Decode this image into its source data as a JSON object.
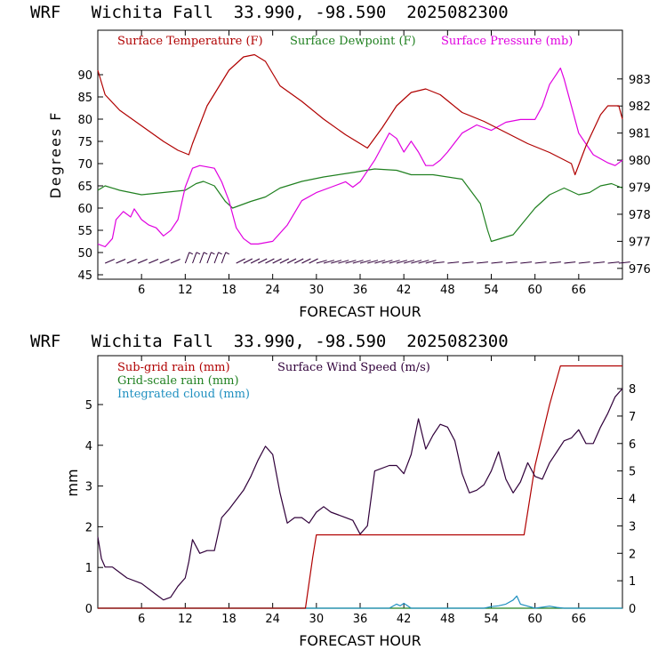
{
  "chart_data": [
    {
      "type": "line",
      "title": "WRF   Wichita Fall  33.990, -98.590  2025082300",
      "xlabel": "FORECAST HOUR",
      "ylabel": "Degrees F",
      "y2label": "",
      "xlim": [
        0,
        72
      ],
      "ylim": [
        44,
        100
      ],
      "y2lim": [
        975.6,
        984.8
      ],
      "xticks": [
        "6",
        "12",
        "18",
        "24",
        "30",
        "36",
        "42",
        "48",
        "54",
        "60",
        "66"
      ],
      "yticks": [
        "45",
        "50",
        "55",
        "60",
        "65",
        "70",
        "75",
        "80",
        "85",
        "90"
      ],
      "y2ticks": [
        "976",
        "977",
        "978",
        "979",
        "980",
        "981",
        "982",
        "983"
      ],
      "colors": {
        "temperature": "#b00000",
        "dewpoint": "#208020",
        "pressure": "#e000e0",
        "wind": "#30003a"
      },
      "series": [
        {
          "name": "Surface Temperature (F)",
          "axis": "left",
          "x": [
            0,
            1,
            3,
            6,
            9,
            11,
            12.5,
            13,
            15,
            18,
            20,
            21.5,
            23,
            25,
            28,
            31,
            34,
            37,
            39,
            41,
            43,
            45,
            47,
            50,
            53,
            56,
            59,
            62,
            65,
            65.5,
            67,
            69,
            70,
            71.5,
            72
          ],
          "values": [
            91,
            85.5,
            82,
            78.5,
            75,
            73,
            72,
            74.5,
            83,
            91,
            94,
            94.5,
            93,
            87.5,
            84,
            80,
            76.5,
            73.5,
            78,
            83,
            86,
            86.8,
            85.5,
            81.5,
            79.5,
            77,
            74.5,
            72.5,
            70,
            67.5,
            74,
            81,
            83,
            83,
            80
          ]
        },
        {
          "name": "Surface Dewpoint (F)",
          "axis": "left",
          "x": [
            0,
            1,
            3,
            6,
            9,
            12,
            13.5,
            14.5,
            16,
            17.5,
            18.5,
            21,
            23,
            25,
            28,
            31,
            35,
            38,
            41,
            43,
            46,
            50,
            52.5,
            53.5,
            54,
            55,
            57,
            60,
            62,
            64,
            66,
            67.5,
            69,
            70.5,
            72
          ],
          "values": [
            64,
            65,
            64,
            63,
            63.5,
            64,
            65.5,
            66,
            65,
            61.5,
            60,
            61.5,
            62.5,
            64.5,
            66,
            67,
            68,
            68.8,
            68.5,
            67.5,
            67.5,
            66.5,
            61,
            55,
            52.5,
            53,
            54,
            60,
            63,
            64.5,
            63,
            63.5,
            65,
            65.5,
            64.5
          ]
        },
        {
          "name": "Surface Pressure (mb)",
          "axis": "right",
          "x": [
            0,
            1,
            2,
            2.5,
            3.5,
            4.5,
            5,
            6,
            7,
            8,
            9,
            10,
            11,
            12,
            13,
            14,
            16,
            17,
            18,
            19,
            20,
            21,
            22,
            24,
            26,
            28,
            30,
            32,
            34,
            35,
            36,
            38,
            39,
            40,
            41,
            42,
            43,
            44,
            45,
            46,
            47,
            48,
            50,
            52,
            54,
            56,
            58,
            60,
            61,
            62,
            63,
            63.5,
            64,
            65,
            66,
            68,
            70,
            71,
            72
          ],
          "values": [
            976.9,
            976.8,
            977.1,
            977.8,
            978.1,
            977.9,
            978.2,
            977.8,
            977.6,
            977.5,
            977.2,
            977.4,
            977.8,
            979.0,
            979.7,
            979.8,
            979.7,
            979.2,
            978.5,
            977.5,
            977.1,
            976.9,
            976.9,
            977.0,
            977.6,
            978.5,
            978.8,
            979.0,
            979.2,
            979.0,
            979.2,
            980.0,
            980.5,
            981.0,
            980.8,
            980.3,
            980.7,
            980.3,
            979.8,
            979.8,
            980.0,
            980.3,
            981.0,
            981.3,
            981.1,
            981.4,
            981.5,
            981.5,
            982.0,
            982.8,
            983.2,
            983.4,
            983.0,
            982.0,
            981.0,
            980.2,
            979.9,
            979.8,
            980.0
          ]
        }
      ],
      "wind_barbs": {
        "name": "",
        "x": [
          1,
          2.5,
          4,
          5.5,
          7,
          8.5,
          10,
          12,
          13,
          14,
          15,
          16,
          17,
          19,
          20,
          21,
          22,
          23,
          24,
          25,
          26,
          27,
          28,
          29,
          30,
          31,
          32,
          33,
          34,
          35,
          36,
          37,
          38,
          39,
          40,
          41,
          42,
          43,
          44,
          45,
          46,
          48,
          50,
          52,
          54,
          56,
          58,
          60,
          62,
          64,
          66,
          68,
          70,
          71.5
        ]
      }
    },
    {
      "type": "line",
      "title": "WRF   Wichita Fall  33.990, -98.590  2025082300",
      "xlabel": "FORECAST HOUR",
      "ylabel": "mm",
      "y2label": "",
      "xlim": [
        0,
        72
      ],
      "ylim": [
        0,
        6.2
      ],
      "y2lim": [
        0,
        9.2
      ],
      "xticks": [
        "6",
        "12",
        "18",
        "24",
        "30",
        "36",
        "42",
        "48",
        "54",
        "60",
        "66"
      ],
      "yticks": [
        "0",
        "1",
        "2",
        "3",
        "4",
        "5"
      ],
      "y2ticks": [
        "0",
        "1",
        "2",
        "3",
        "4",
        "5",
        "6",
        "7",
        "8"
      ],
      "colors": {
        "subgrid": "#b00000",
        "gridscale": "#208020",
        "cloud": "#2090c0",
        "wind": "#30003a"
      },
      "series": [
        {
          "name": "Sub-grid rain (mm)",
          "axis": "left",
          "x": [
            0,
            28.5,
            29.5,
            30,
            58.5,
            60,
            62,
            63.5,
            72
          ],
          "values": [
            0,
            0,
            1.25,
            1.8,
            1.8,
            3.5,
            5.0,
            5.95,
            5.95
          ]
        },
        {
          "name": "Grid-scale rain (mm)",
          "axis": "left",
          "x": [
            0,
            72
          ],
          "values": [
            0,
            0
          ]
        },
        {
          "name": "Integrated cloud (mm)",
          "axis": "left",
          "x": [
            0,
            40,
            41,
            41.5,
            42,
            43,
            53,
            54,
            55,
            56,
            57,
            57.5,
            58,
            60,
            62,
            63,
            64,
            72
          ],
          "values": [
            0,
            0,
            0.1,
            0.06,
            0.12,
            0,
            0,
            0.04,
            0.06,
            0.1,
            0.2,
            0.3,
            0.1,
            0,
            0.05,
            0.02,
            0,
            0
          ]
        },
        {
          "name": "Surface Wind Speed (m/s)",
          "axis": "right",
          "x": [
            0,
            0.5,
            1,
            2,
            4,
            6,
            8,
            9,
            10,
            11,
            12,
            12.5,
            13,
            14,
            15,
            16,
            17,
            18,
            20,
            21,
            22,
            23,
            24,
            25,
            26,
            27,
            28,
            29,
            30,
            31,
            32,
            33,
            34,
            35,
            36,
            37,
            38,
            40,
            41,
            42,
            43,
            44,
            45,
            46,
            47,
            48,
            49,
            50,
            51,
            52,
            53,
            54,
            55,
            56,
            57,
            58,
            59,
            60,
            61,
            62,
            63,
            64,
            65,
            66,
            67,
            68,
            69,
            70,
            71,
            72
          ],
          "values": [
            2.6,
            1.8,
            1.5,
            1.5,
            1.1,
            0.9,
            0.5,
            0.3,
            0.4,
            0.8,
            1.1,
            1.7,
            2.5,
            2.0,
            2.1,
            2.1,
            3.3,
            3.6,
            4.3,
            4.8,
            5.4,
            5.9,
            5.6,
            4.2,
            3.1,
            3.3,
            3.3,
            3.1,
            3.5,
            3.7,
            3.5,
            3.4,
            3.3,
            3.2,
            2.7,
            3.0,
            5.0,
            5.2,
            5.2,
            4.9,
            5.6,
            6.9,
            5.8,
            6.3,
            6.7,
            6.6,
            6.1,
            4.9,
            4.2,
            4.3,
            4.5,
            5.0,
            5.7,
            4.7,
            4.2,
            4.6,
            5.3,
            4.8,
            4.7,
            5.3,
            5.7,
            6.1,
            6.2,
            6.5,
            6.0,
            6.0,
            6.6,
            7.1,
            7.7,
            8.0
          ]
        }
      ]
    }
  ]
}
